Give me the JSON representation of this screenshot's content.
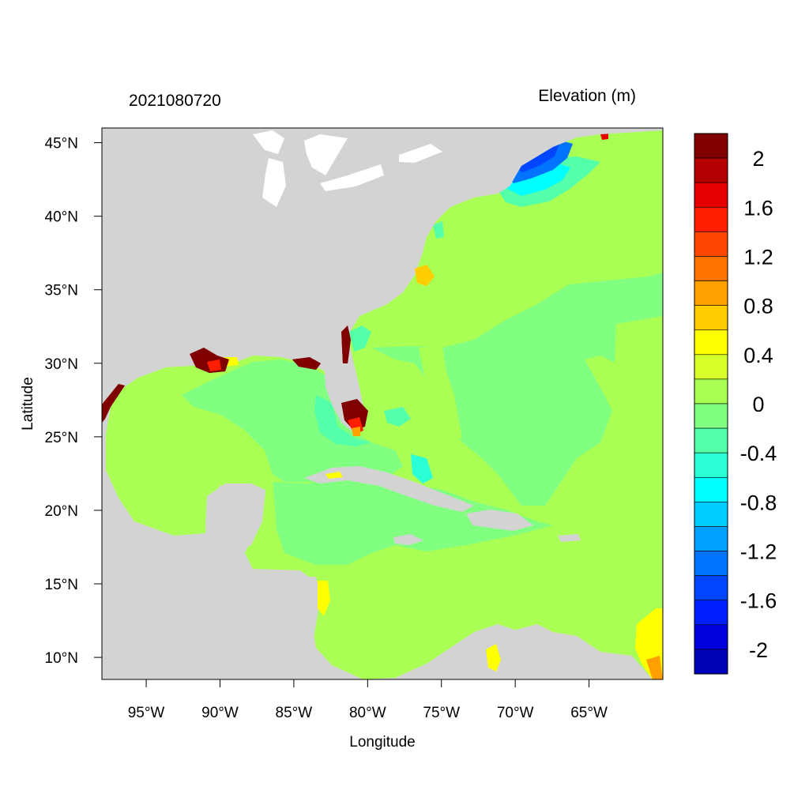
{
  "figure": {
    "left_title": "2021080720",
    "right_title": "Elevation (m)",
    "x_axis_label": "Longitude",
    "y_axis_label": "Latitude"
  },
  "map_extent": {
    "lon_range": [
      -98,
      -60
    ],
    "lat_range": [
      8.5,
      46
    ],
    "x_ticks": [
      {
        "lon": -95,
        "label": "95°W"
      },
      {
        "lon": -90,
        "label": "90°W"
      },
      {
        "lon": -85,
        "label": "85°W"
      },
      {
        "lon": -80,
        "label": "80°W"
      },
      {
        "lon": -75,
        "label": "75°W"
      },
      {
        "lon": -70,
        "label": "70°W"
      },
      {
        "lon": -65,
        "label": "65°W"
      }
    ],
    "y_ticks": [
      {
        "lat": 45,
        "label": "45°N"
      },
      {
        "lat": 40,
        "label": "40°N"
      },
      {
        "lat": 35,
        "label": "35°N"
      },
      {
        "lat": 30,
        "label": "30°N"
      },
      {
        "lat": 25,
        "label": "25°N"
      },
      {
        "lat": 20,
        "label": "20°N"
      },
      {
        "lat": 15,
        "label": "15°N"
      },
      {
        "lat": 10,
        "label": "10°N"
      }
    ]
  },
  "colors": {
    "land": "#d3d3d3",
    "lakes": "#ffffff",
    "frame": "#000000"
  },
  "colorbar": {
    "levels": [
      {
        "color": "#800000"
      },
      {
        "color": "#b40000"
      },
      {
        "color": "#e60000"
      },
      {
        "color": "#ff1e00"
      },
      {
        "color": "#ff4600"
      },
      {
        "color": "#ff7300"
      },
      {
        "color": "#ffa000"
      },
      {
        "color": "#ffcd00"
      },
      {
        "color": "#ffff00"
      },
      {
        "color": "#d7ff2a"
      },
      {
        "color": "#aaff55"
      },
      {
        "color": "#80ff80"
      },
      {
        "color": "#55ffaa"
      },
      {
        "color": "#2affd5"
      },
      {
        "color": "#00ffff"
      },
      {
        "color": "#00cdff"
      },
      {
        "color": "#00a0ff"
      },
      {
        "color": "#0073ff"
      },
      {
        "color": "#0046ff"
      },
      {
        "color": "#001eff"
      },
      {
        "color": "#0000dc"
      },
      {
        "color": "#0000b4"
      }
    ],
    "tick_labels": [
      "2",
      "1.6",
      "1.2",
      "0.8",
      "0.4",
      "0",
      "-0.4",
      "-0.8",
      "-1.2",
      "-1.6",
      "-2"
    ]
  }
}
